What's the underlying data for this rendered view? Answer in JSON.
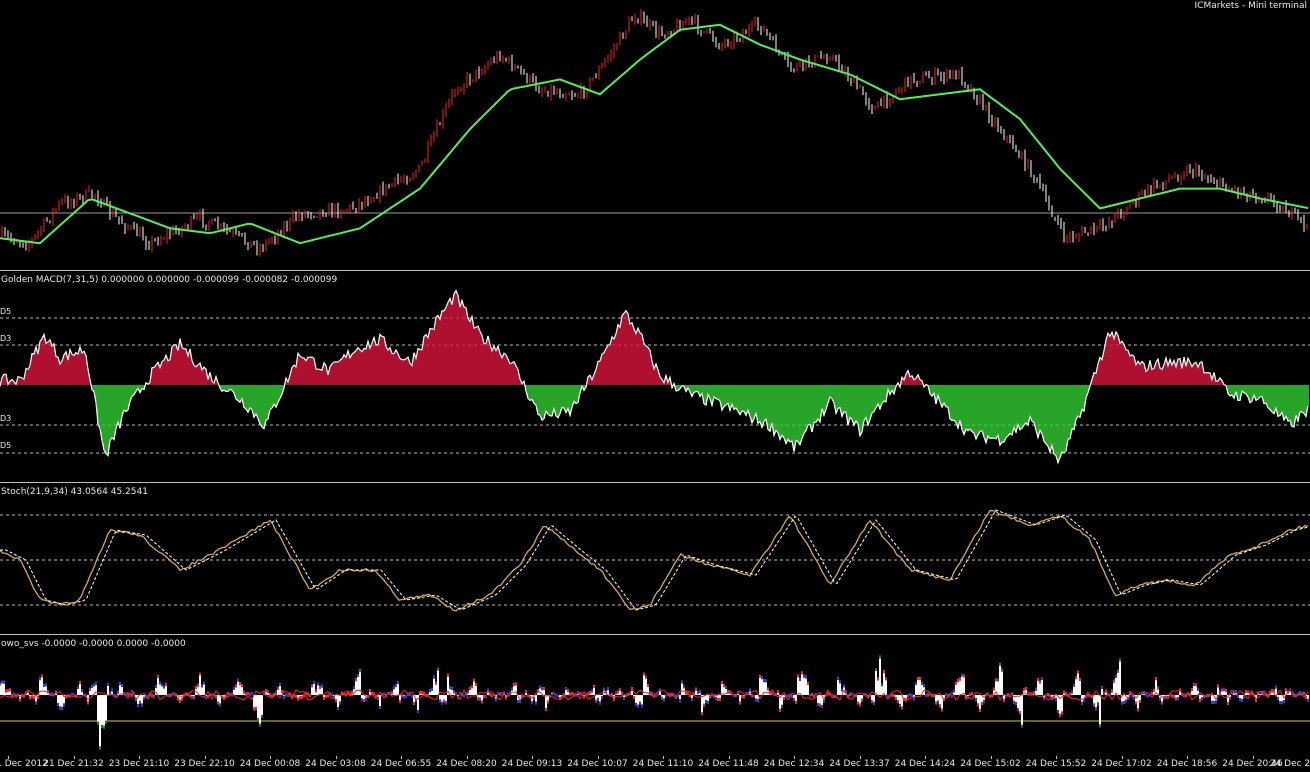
{
  "window": {
    "title": "ICMarkets - Mini terminal"
  },
  "indicators": {
    "macd_label": "Golden MACD(7,31,5) 0.000000 0.000000 -0.000099 -0.000082 -0.000099",
    "stoch_label": "Stoch(21,9,34) 43.0564 45.2541",
    "wo_label": "owo_svs -0.0000 -0.0000 0.0000 -0.0000",
    "macd_levels": [
      "D5",
      "D3",
      "D3",
      "D5"
    ]
  },
  "x_axis": {
    "ticks": [
      "1 Dec 2012",
      "21 Dec 21:32",
      "23 Dec 21:10",
      "23 Dec 22:10",
      "24 Dec 00:08",
      "24 Dec 03:08",
      "24 Dec 06:55",
      "24 Dec 08:20",
      "24 Dec 09:13",
      "24 Dec 10:07",
      "24 Dec 11:10",
      "24 Dec 11:48",
      "24 Dec 12:34",
      "24 Dec 13:37",
      "24 Dec 14:24",
      "24 Dec 15:02",
      "24 Dec 15:52",
      "24 Dec 17:02",
      "24 Dec 18:56",
      "24 Dec 20:46",
      "24 Dec 2"
    ]
  },
  "chart_data": [
    {
      "type": "line",
      "name": "price",
      "x": [
        0,
        30,
        60,
        95,
        110,
        150,
        200,
        260,
        300,
        350,
        420,
        455,
        500,
        540,
        580,
        600,
        635,
        660,
        690,
        720,
        760,
        790,
        830,
        875,
        910,
        960,
        1000,
        1030,
        1065,
        1100,
        1150,
        1190,
        1230,
        1270,
        1310
      ],
      "y": [
        238,
        245,
        205,
        195,
        215,
        245,
        220,
        250,
        215,
        210,
        170,
        90,
        55,
        90,
        95,
        70,
        15,
        35,
        20,
        45,
        25,
        70,
        55,
        110,
        80,
        75,
        130,
        170,
        240,
        230,
        190,
        170,
        190,
        200,
        230
      ],
      "ylim": [
        0,
        270
      ]
    },
    {
      "type": "line",
      "name": "moving average",
      "x": [
        0,
        40,
        90,
        130,
        170,
        210,
        250,
        300,
        360,
        420,
        470,
        510,
        560,
        600,
        640,
        680,
        720,
        760,
        800,
        850,
        900,
        940,
        980,
        1020,
        1060,
        1100,
        1140,
        1180,
        1220,
        1260,
        1310
      ],
      "y": [
        240,
        245,
        200,
        215,
        230,
        235,
        225,
        245,
        230,
        190,
        130,
        90,
        80,
        95,
        60,
        30,
        25,
        45,
        60,
        75,
        100,
        95,
        90,
        120,
        170,
        210,
        200,
        190,
        190,
        200,
        210
      ],
      "ylim": [
        0,
        270
      ]
    },
    {
      "type": "bar",
      "name": "golden macd histogram",
      "x": [
        0,
        20,
        45,
        60,
        85,
        105,
        125,
        150,
        180,
        210,
        245,
        265,
        300,
        330,
        355,
        380,
        410,
        430,
        455,
        480,
        510,
        540,
        570,
        600,
        625,
        640,
        660,
        690,
        715,
        740,
        770,
        795,
        830,
        860,
        885,
        910,
        940,
        970,
        1000,
        1030,
        1060,
        1080,
        1110,
        1140,
        1170,
        1200,
        1230,
        1260,
        1290,
        1310
      ],
      "values": [
        5,
        5,
        55,
        30,
        40,
        -80,
        -30,
        10,
        45,
        10,
        -20,
        -45,
        35,
        15,
        40,
        50,
        25,
        60,
        100,
        55,
        30,
        -35,
        -30,
        25,
        80,
        55,
        10,
        -10,
        -20,
        -30,
        -45,
        -70,
        -20,
        -50,
        -15,
        15,
        -20,
        -55,
        -60,
        -40,
        -85,
        -35,
        60,
        20,
        25,
        25,
        -10,
        -15,
        -45,
        -25
      ],
      "ylim": [
        -100,
        100
      ]
    },
    {
      "type": "line",
      "name": "stoch main",
      "x": [
        0,
        20,
        40,
        60,
        80,
        110,
        140,
        180,
        220,
        270,
        310,
        340,
        375,
        400,
        430,
        455,
        490,
        520,
        545,
        575,
        600,
        630,
        650,
        680,
        710,
        750,
        790,
        830,
        870,
        910,
        950,
        990,
        1030,
        1060,
        1090,
        1115,
        1140,
        1165,
        1195,
        1230,
        1260,
        1290,
        1310
      ],
      "y": [
        75,
        65,
        25,
        20,
        25,
        95,
        90,
        55,
        75,
        105,
        35,
        55,
        55,
        25,
        30,
        15,
        30,
        60,
        100,
        75,
        55,
        15,
        20,
        70,
        60,
        50,
        110,
        40,
        105,
        55,
        45,
        115,
        100,
        110,
        85,
        30,
        40,
        45,
        40,
        70,
        80,
        95,
        100
      ],
      "ylim": [
        0,
        130
      ]
    },
    {
      "type": "area",
      "name": "owo_svs oscillator",
      "x": [
        0,
        20,
        40,
        60,
        80,
        100,
        120,
        140,
        160,
        180,
        200,
        220,
        240,
        260,
        280,
        300,
        320,
        340,
        360,
        380,
        400,
        420,
        440,
        460,
        480,
        500,
        520,
        540,
        560,
        580,
        600,
        620,
        640,
        660,
        680,
        700,
        720,
        740,
        760,
        780,
        800,
        820,
        840,
        860,
        880,
        900,
        920,
        940,
        960,
        980,
        1000,
        1020,
        1040,
        1060,
        1080,
        1100,
        1120,
        1140,
        1160,
        1180,
        1200,
        1220,
        1240,
        1260,
        1280,
        1300
      ],
      "values": [
        30,
        -10,
        45,
        -30,
        25,
        -85,
        20,
        -25,
        35,
        -15,
        40,
        -20,
        30,
        -45,
        25,
        -15,
        35,
        -30,
        45,
        -20,
        30,
        -35,
        60,
        -15,
        40,
        -25,
        35,
        -45,
        30,
        -20,
        40,
        -30,
        55,
        -25,
        30,
        -45,
        35,
        -20,
        45,
        -30,
        50,
        -25,
        35,
        -20,
        60,
        -30,
        40,
        -35,
        45,
        -30,
        50,
        -55,
        35,
        -40,
        45,
        -50,
        55,
        -35,
        40,
        -25,
        35,
        -45,
        30,
        -20,
        40,
        -15
      ],
      "ylim": [
        -100,
        80
      ]
    }
  ],
  "colors": {
    "background": "#000000",
    "bull_candle": "#ff2020",
    "bear_candle": "#ffffff",
    "ma_line": "#55ee55",
    "macd_positive": "#dc143c",
    "macd_negative": "#32cd32",
    "stoch_main": "#d4aa55",
    "stoch_signal": "#ffffff",
    "owo_green": "#1a8a1a",
    "owo_red": "#ff2020",
    "owo_blue": "#2a3bd6",
    "owo_fill": "#ffffff"
  }
}
